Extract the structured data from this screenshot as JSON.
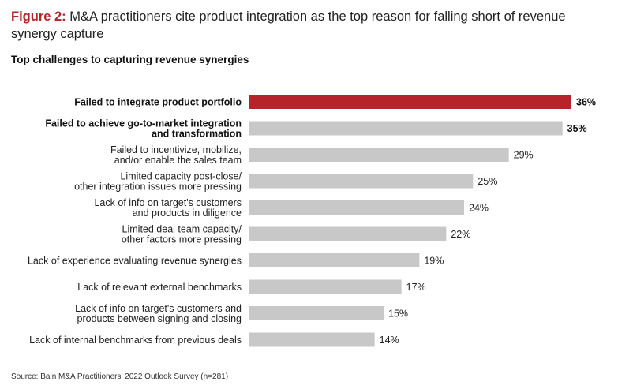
{
  "figure": {
    "label": "Figure 2:",
    "title": "M&A practitioners cite product integration as the top reason for falling short of revenue synergy capture"
  },
  "chart_data": {
    "type": "bar",
    "orientation": "horizontal",
    "title": "Top challenges to capturing revenue synergies",
    "categories": [
      [
        "Failed to integrate product portfolio"
      ],
      [
        "Failed to achieve go-to-market integration",
        "and transformation"
      ],
      [
        "Failed to incentivize, mobilize,",
        "and/or enable the sales team"
      ],
      [
        "Limited capacity post-close/",
        "other integration issues more pressing"
      ],
      [
        "Lack of info on target's customers",
        "and products in diligence"
      ],
      [
        "Limited deal team capacity/",
        "other factors more pressing"
      ],
      [
        "Lack of experience evaluating revenue synergies"
      ],
      [
        "Lack of relevant external benchmarks"
      ],
      [
        "Lack of info on target's customers and",
        "products between signing and closing"
      ],
      [
        "Lack of internal benchmarks from previous deals"
      ]
    ],
    "values": [
      36,
      35,
      29,
      25,
      24,
      22,
      19,
      17,
      15,
      14
    ],
    "value_labels": [
      "36%",
      "35%",
      "29%",
      "25%",
      "24%",
      "22%",
      "19%",
      "17%",
      "15%",
      "14%"
    ],
    "emphasized": [
      true,
      true,
      false,
      false,
      false,
      false,
      false,
      false,
      false,
      false
    ],
    "bar_colors": [
      "#b7232b",
      "#c8c8c8",
      "#c8c8c8",
      "#c8c8c8",
      "#c8c8c8",
      "#c8c8c8",
      "#c8c8c8",
      "#c8c8c8",
      "#c8c8c8",
      "#c8c8c8"
    ],
    "xlim": [
      0,
      36
    ]
  },
  "source": "Source: Bain M&A Practitioners’ 2022 Outlook Survey (n=281)"
}
